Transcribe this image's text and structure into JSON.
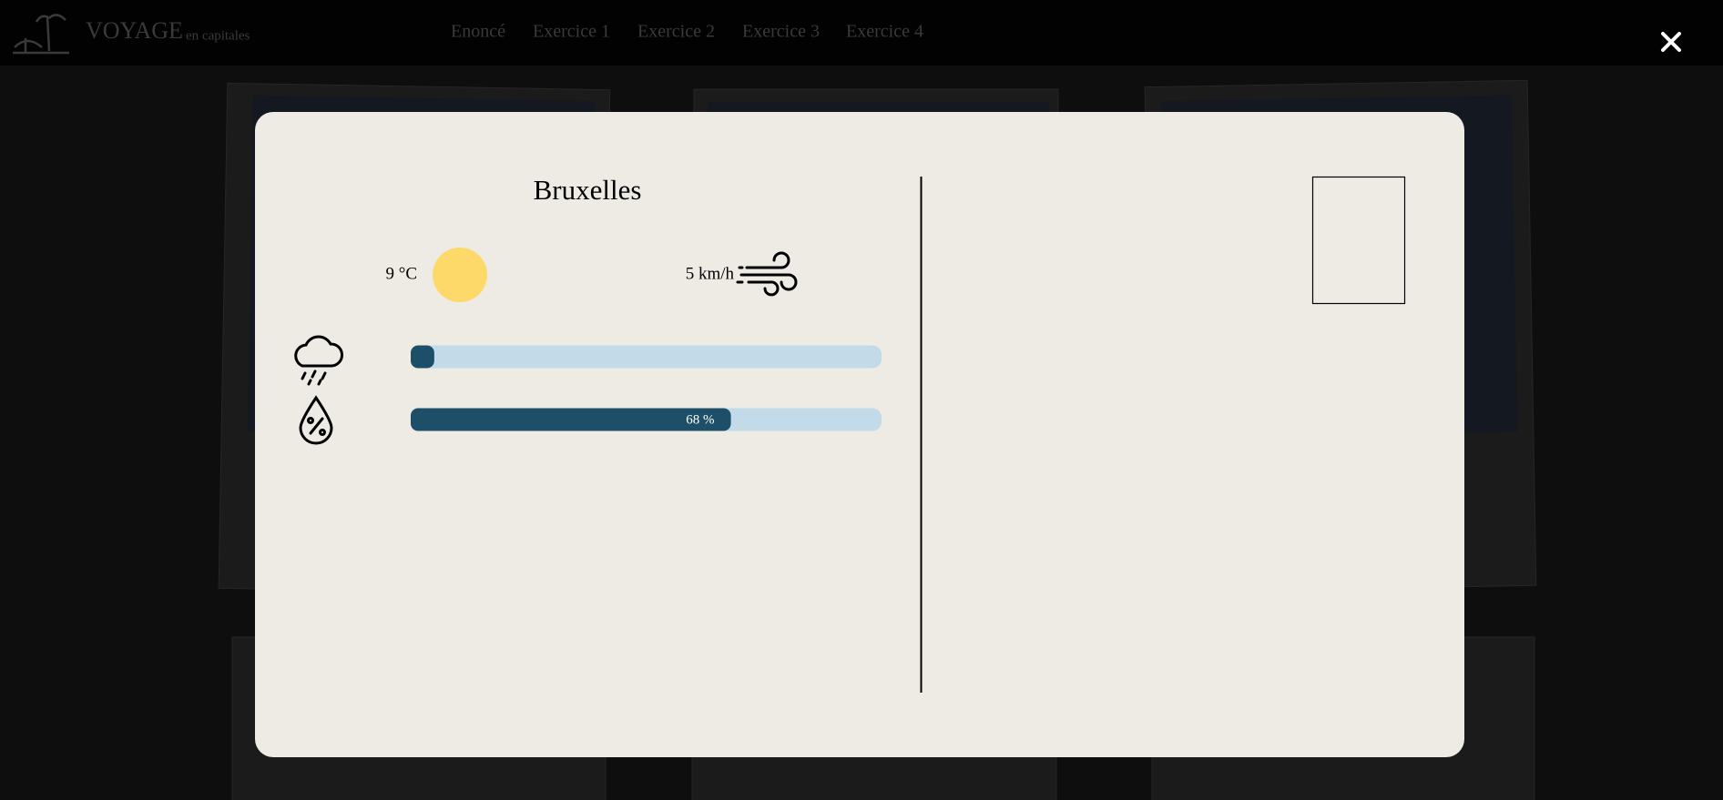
{
  "header": {
    "brand": "VOYAGE",
    "tagline": "en capitales",
    "nav": [
      "Enoncé",
      "Exercice 1",
      "Exercice 2",
      "Exercice 3",
      "Exercice 4"
    ]
  },
  "card": {
    "city": "Bruxelles",
    "temperature": "9 °C",
    "wind": "5 km/h",
    "rain": {
      "value": 5
    },
    "humidity": {
      "value": 68,
      "value_label": "68 %"
    }
  }
}
